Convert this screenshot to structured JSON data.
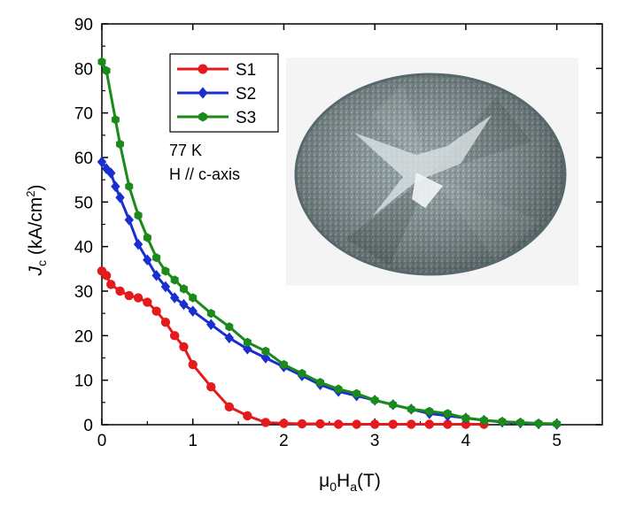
{
  "chart_data": {
    "type": "line",
    "xlabel_main": "μ",
    "xlabel_sub1": "0",
    "xlabel_mid": "H",
    "xlabel_sub2": "a",
    "xlabel_tail": "(T)",
    "ylabel_j": "J",
    "ylabel_c": "c",
    "ylabel_units": " (kA/cm",
    "ylabel_sup": "2",
    "ylabel_close": ")",
    "xlim": [
      0,
      5.5
    ],
    "ylim": [
      0,
      90
    ],
    "xticks": [
      "0",
      "1",
      "2",
      "3",
      "4",
      "5"
    ],
    "yticks": [
      "0",
      "10",
      "20",
      "30",
      "40",
      "50",
      "60",
      "70",
      "80",
      "90"
    ],
    "legend_position": "top-left",
    "annotation_line1": "77 K",
    "annotation_line2": "H // c-axis",
    "series": [
      {
        "name": "S1",
        "color": "#e41a1c",
        "marker": "circle",
        "x": [
          0.0,
          0.05,
          0.1,
          0.2,
          0.3,
          0.4,
          0.5,
          0.6,
          0.7,
          0.8,
          0.9,
          1.0,
          1.2,
          1.4,
          1.6,
          1.8,
          2.0,
          2.2,
          2.4,
          2.6,
          2.8,
          3.0,
          3.2,
          3.4,
          3.6,
          3.8,
          4.0,
          4.2
        ],
        "y": [
          34.5,
          33.5,
          31.5,
          30.0,
          29.0,
          28.5,
          27.5,
          25.5,
          23.0,
          20.0,
          17.5,
          13.5,
          8.5,
          4.0,
          2.0,
          0.5,
          0.3,
          0.2,
          0.2,
          0.1,
          0.1,
          0.1,
          0.1,
          0.1,
          0.1,
          0.1,
          0.1,
          0.1
        ]
      },
      {
        "name": "S2",
        "color": "#1a2fcf",
        "marker": "diamond",
        "x": [
          0.0,
          0.05,
          0.1,
          0.15,
          0.2,
          0.3,
          0.4,
          0.5,
          0.6,
          0.7,
          0.8,
          0.9,
          1.0,
          1.2,
          1.4,
          1.6,
          1.8,
          2.0,
          2.2,
          2.4,
          2.6,
          2.8,
          3.0,
          3.2,
          3.4,
          3.6,
          3.8,
          4.0,
          4.2,
          4.4,
          4.6,
          4.8,
          5.0
        ],
        "y": [
          59.0,
          57.5,
          56.5,
          53.5,
          51.0,
          46.0,
          40.5,
          37.0,
          33.5,
          31.0,
          28.5,
          27.0,
          25.5,
          22.5,
          19.5,
          17.0,
          15.0,
          13.0,
          11.0,
          9.0,
          7.5,
          6.5,
          5.5,
          4.5,
          3.5,
          2.5,
          2.0,
          1.5,
          1.0,
          0.6,
          0.4,
          0.2,
          0.1
        ]
      },
      {
        "name": "S3",
        "color": "#1a8a1a",
        "marker": "hexagon",
        "x": [
          0.0,
          0.05,
          0.15,
          0.2,
          0.3,
          0.4,
          0.5,
          0.6,
          0.7,
          0.8,
          0.9,
          1.0,
          1.2,
          1.4,
          1.6,
          1.8,
          2.0,
          2.2,
          2.4,
          2.6,
          2.8,
          3.0,
          3.2,
          3.4,
          3.6,
          3.8,
          4.0,
          4.2,
          4.4,
          4.6,
          4.8,
          5.0
        ],
        "y": [
          81.5,
          79.5,
          68.5,
          63.0,
          53.5,
          47.0,
          42.0,
          37.5,
          34.5,
          32.5,
          30.5,
          28.5,
          25.0,
          22.0,
          18.5,
          16.5,
          13.5,
          11.5,
          9.5,
          8.0,
          7.0,
          5.5,
          4.5,
          3.5,
          3.0,
          2.5,
          1.5,
          1.0,
          0.7,
          0.5,
          0.3,
          0.2
        ]
      }
    ]
  }
}
